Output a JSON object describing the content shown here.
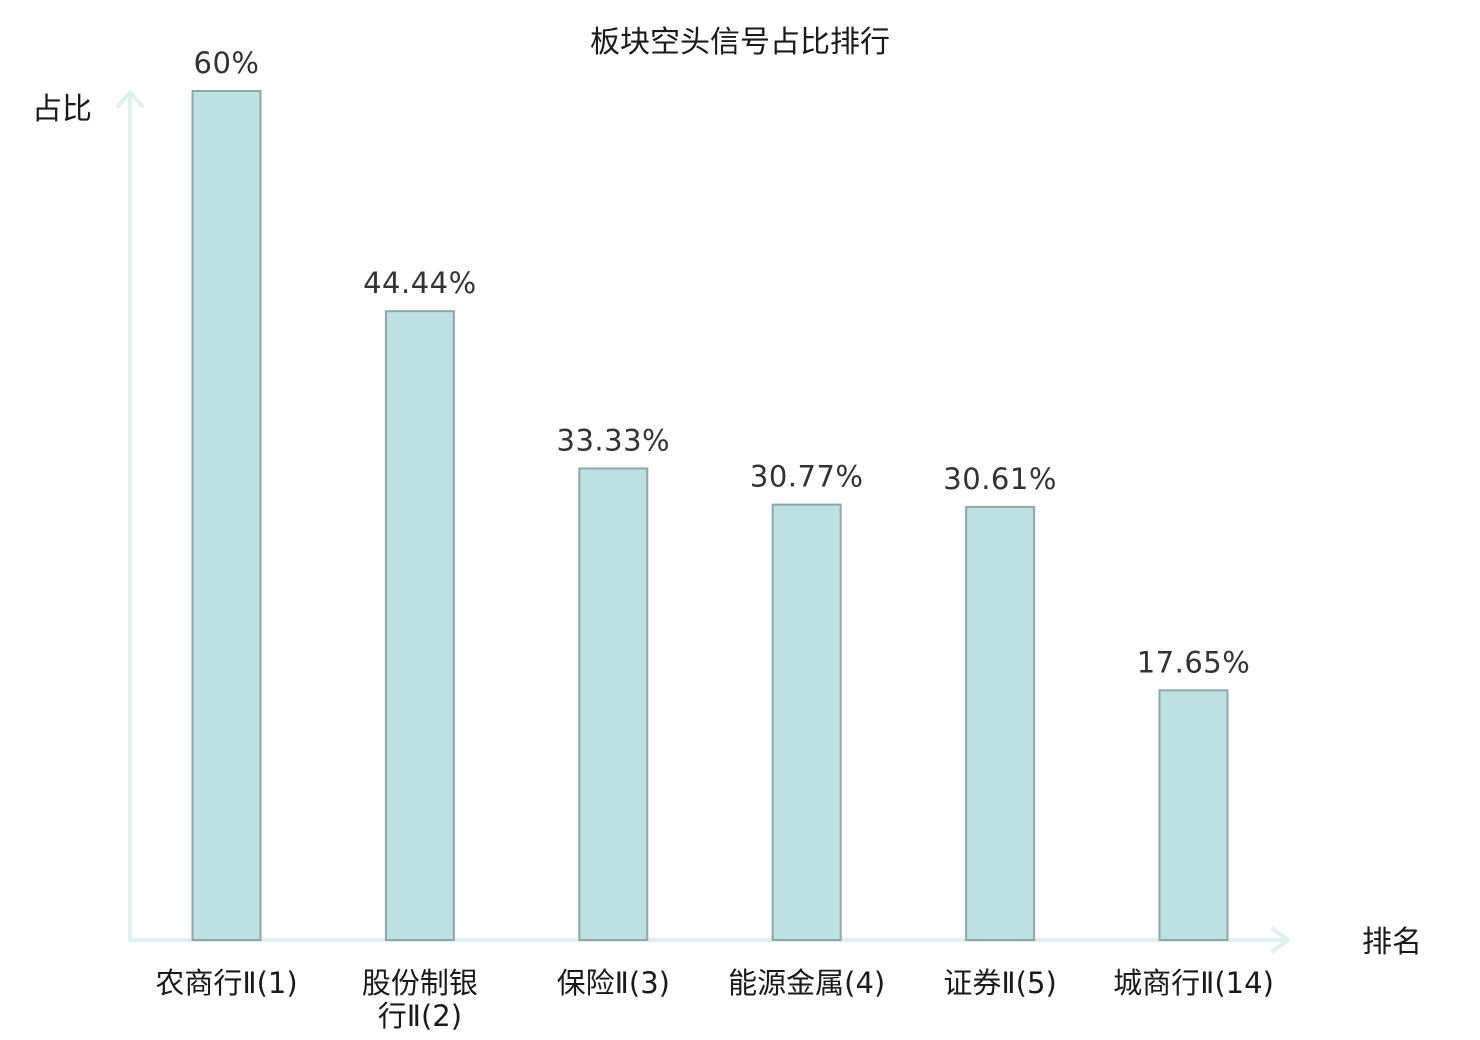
{
  "chart_data": {
    "type": "bar",
    "title": "板块空头信号占比排行",
    "ylabel": "占比",
    "xlabel": "排名",
    "categories": [
      [
        "农商行Ⅱ(1)"
      ],
      [
        "股份制银",
        "行Ⅱ(2)"
      ],
      [
        "保险Ⅱ(3)"
      ],
      [
        "能源金属(4)"
      ],
      [
        "证券Ⅱ(5)"
      ],
      [
        "城商行Ⅱ(14)"
      ]
    ],
    "values": [
      60,
      44.44,
      33.33,
      30.77,
      30.61,
      17.65
    ],
    "value_labels": [
      "60%",
      "44.44%",
      "33.33%",
      "30.77%",
      "30.61%",
      "17.65%"
    ],
    "highlight_index": 5,
    "ylim": [
      0,
      60
    ],
    "grid": false,
    "colors": {
      "bar_fill": "#bde0e3",
      "bar_stroke": "#8fa6aa",
      "axis": "#dff0ee",
      "highlight_text": "#e0121b",
      "text": "#1a1a1a"
    }
  }
}
